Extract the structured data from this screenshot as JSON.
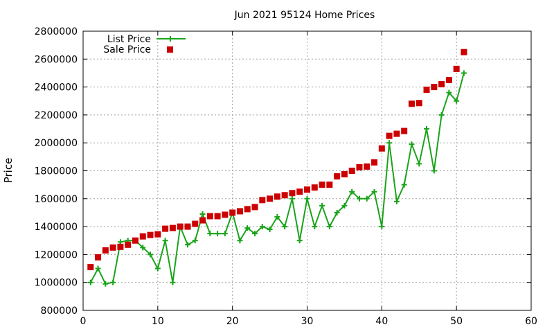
{
  "chart_data": {
    "type": "line",
    "title": "Jun 2021 95124 Home Prices",
    "xlabel": "",
    "ylabel": "Price",
    "xlim": [
      0,
      60
    ],
    "ylim": [
      800000,
      2800000
    ],
    "xticks": [
      0,
      10,
      20,
      30,
      40,
      50,
      60
    ],
    "yticks": [
      800000,
      1000000,
      1200000,
      1400000,
      1600000,
      1800000,
      2000000,
      2200000,
      2400000,
      2600000,
      2800000
    ],
    "grid": true,
    "legend_position": "top-left",
    "series": [
      {
        "name": "List Price",
        "style": "line-with-plus-markers",
        "color": "#1aa31a",
        "x": [
          1,
          2,
          3,
          4,
          5,
          6,
          7,
          8,
          9,
          10,
          11,
          12,
          13,
          14,
          15,
          16,
          17,
          18,
          19,
          20,
          21,
          22,
          23,
          24,
          25,
          26,
          27,
          28,
          29,
          30,
          31,
          32,
          33,
          34,
          35,
          36,
          37,
          38,
          39,
          40,
          41,
          42,
          43,
          44,
          45,
          46,
          47,
          48,
          49,
          50,
          51
        ],
        "values": [
          1000000,
          1100000,
          990000,
          1000000,
          1290000,
          1300000,
          1300000,
          1250000,
          1200000,
          1100000,
          1300000,
          1000000,
          1400000,
          1270000,
          1300000,
          1490000,
          1350000,
          1350000,
          1350000,
          1500000,
          1300000,
          1390000,
          1350000,
          1400000,
          1380000,
          1470000,
          1400000,
          1600000,
          1300000,
          1600000,
          1400000,
          1550000,
          1400000,
          1500000,
          1550000,
          1650000,
          1600000,
          1600000,
          1650000,
          1400000,
          2000000,
          1580000,
          1700000,
          1990000,
          1850000,
          2100000,
          1800000,
          2200000,
          2360000,
          2300000,
          2500000
        ]
      },
      {
        "name": "Sale Price",
        "style": "square-markers",
        "color": "#cc0000",
        "x": [
          1,
          2,
          3,
          4,
          5,
          6,
          7,
          8,
          9,
          10,
          11,
          12,
          13,
          14,
          15,
          16,
          17,
          18,
          19,
          20,
          21,
          22,
          23,
          24,
          25,
          26,
          27,
          28,
          29,
          30,
          31,
          32,
          33,
          34,
          35,
          36,
          37,
          38,
          39,
          40,
          41,
          42,
          43,
          44,
          45,
          46,
          47,
          48,
          49,
          50,
          51
        ],
        "values": [
          1110000,
          1180000,
          1230000,
          1250000,
          1255000,
          1270000,
          1300000,
          1330000,
          1340000,
          1345000,
          1385000,
          1390000,
          1400000,
          1400000,
          1420000,
          1445000,
          1475000,
          1475000,
          1485000,
          1500000,
          1510000,
          1525000,
          1540000,
          1590000,
          1600000,
          1615000,
          1625000,
          1640000,
          1650000,
          1665000,
          1680000,
          1700000,
          1700000,
          1760000,
          1775000,
          1800000,
          1825000,
          1830000,
          1860000,
          1960000,
          2050000,
          2065000,
          2085000,
          2280000,
          2285000,
          2380000,
          2400000,
          2420000,
          2450000,
          2530000,
          2650000
        ]
      }
    ]
  }
}
